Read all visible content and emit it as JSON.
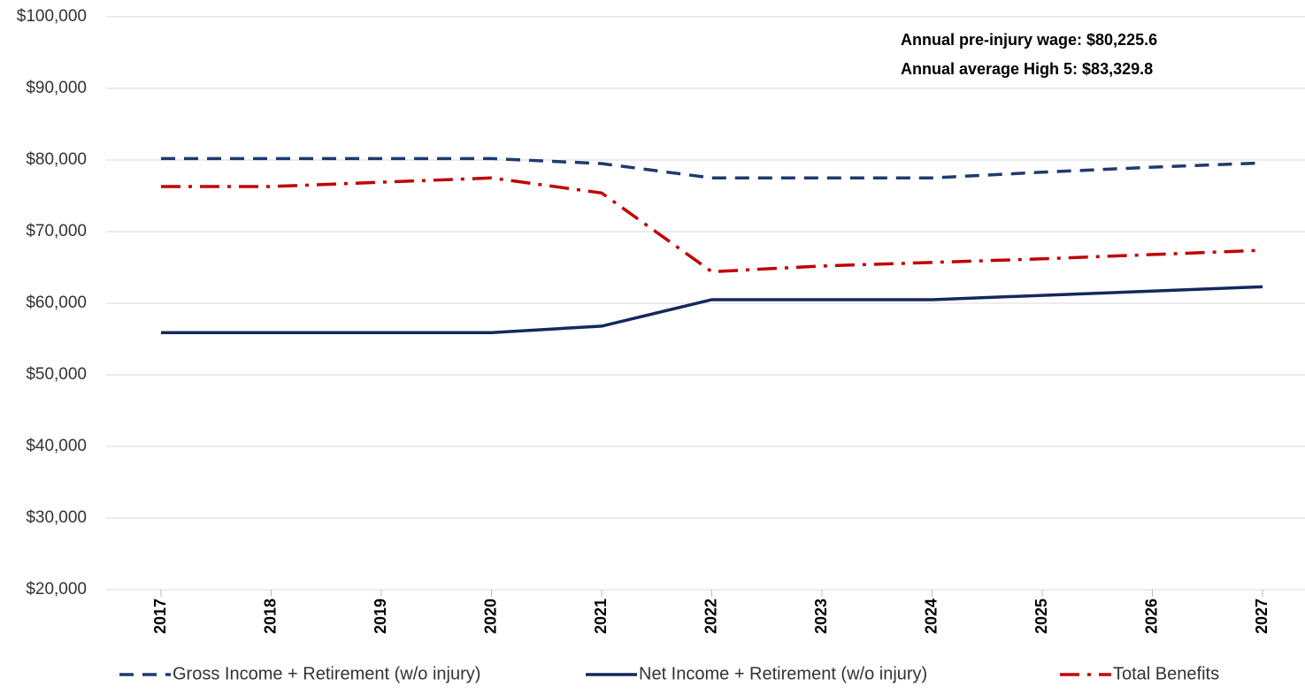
{
  "chart_data": {
    "type": "line",
    "annotations": [
      "Annual pre-injury wage: $80,225.6",
      "Annual average High 5: $83,329.8"
    ],
    "categories": [
      "2017",
      "2018",
      "2019",
      "2020",
      "2021",
      "2022",
      "2023",
      "2024",
      "2025",
      "2026",
      "2027"
    ],
    "series": [
      {
        "name": "Gross Income + Retirement (w/o injury)",
        "color": "#1f3a6e",
        "dash": "dashed",
        "values": [
          80200,
          80200,
          80200,
          80200,
          79500,
          77500,
          77500,
          77500,
          78300,
          79000,
          79600
        ]
      },
      {
        "name": "Net Income + Retirement (w/o injury)",
        "color": "#14285e",
        "dash": "solid",
        "values": [
          55900,
          55900,
          55900,
          55900,
          56800,
          60500,
          60500,
          60500,
          61100,
          61700,
          62300
        ]
      },
      {
        "name": "Total Benefits",
        "color": "#c00000",
        "dash": "dashdot",
        "values": [
          76300,
          76300,
          76900,
          77500,
          75400,
          64400,
          65200,
          65700,
          66200,
          66800,
          67400
        ]
      }
    ],
    "ylim": [
      20000,
      100000
    ],
    "yticks": [
      {
        "value": 20000,
        "label": "$20,000"
      },
      {
        "value": 30000,
        "label": "$30,000"
      },
      {
        "value": 40000,
        "label": "$40,000"
      },
      {
        "value": 50000,
        "label": "$50,000"
      },
      {
        "value": 60000,
        "label": "$60,000"
      },
      {
        "value": 70000,
        "label": "$70,000"
      },
      {
        "value": 80000,
        "label": "$80,000"
      },
      {
        "value": 90000,
        "label": "$90,000"
      },
      {
        "value": 100000,
        "label": "$100,000"
      }
    ],
    "grid": true
  }
}
